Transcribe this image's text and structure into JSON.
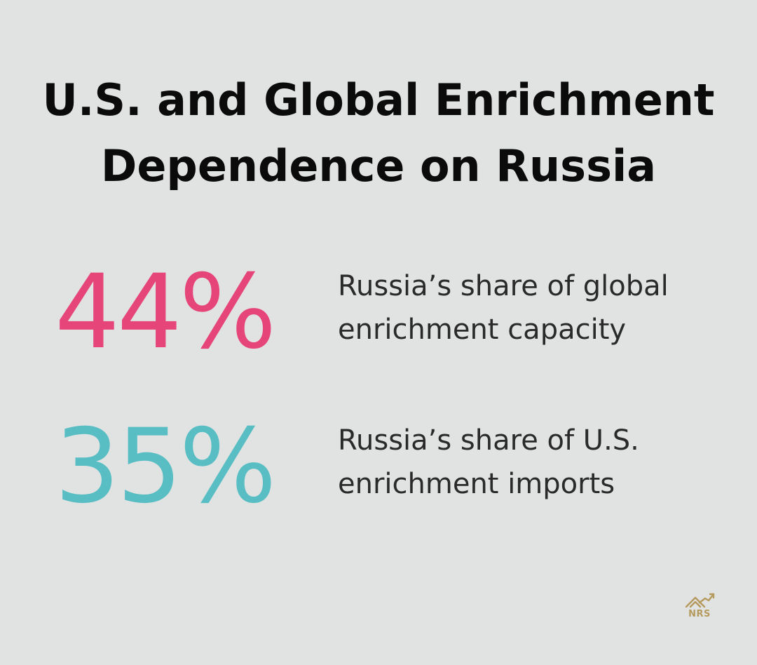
{
  "title": {
    "line1": "U.S. and Global Enrichment",
    "line2": "Dependence on Russia"
  },
  "stats": [
    {
      "value": "44%",
      "color": "#e6457a",
      "description_line1": "Russia’s share of global",
      "description_line2": "enrichment capacity"
    },
    {
      "value": "35%",
      "color": "#58bec4",
      "description_line1": "Russia’s share of U.S.",
      "description_line2": "enrichment imports"
    }
  ],
  "logo": {
    "text": "NRS",
    "icon": "house-chart-icon",
    "color": "#b59a5e"
  }
}
